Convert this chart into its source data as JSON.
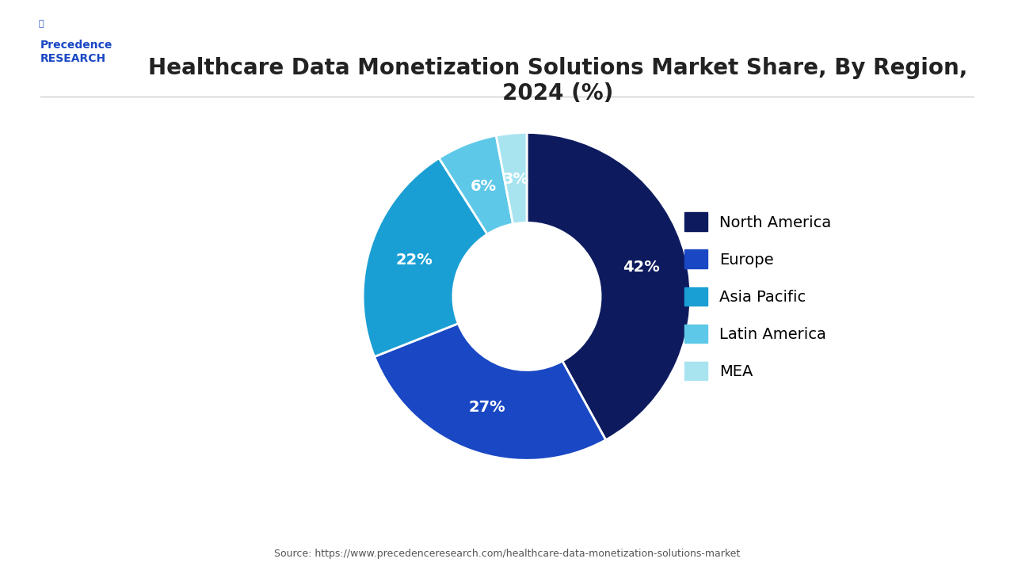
{
  "title": "Healthcare Data Monetization Solutions Market Share, By Region,\n2024 (%)",
  "segments": [
    "North America",
    "Europe",
    "Asia Pacific",
    "Latin America",
    "MEA"
  ],
  "values": [
    42,
    27,
    22,
    6,
    3
  ],
  "colors": [
    "#0d1b5e",
    "#1a48c4",
    "#1a9fd4",
    "#5ec8e8",
    "#a8e4f0"
  ],
  "source": "Source: https://www.precedenceresearch.com/healthcare-data-monetization-solutions-market",
  "background_color": "#ffffff",
  "title_fontsize": 20,
  "label_fontsize": 14,
  "legend_fontsize": 14
}
